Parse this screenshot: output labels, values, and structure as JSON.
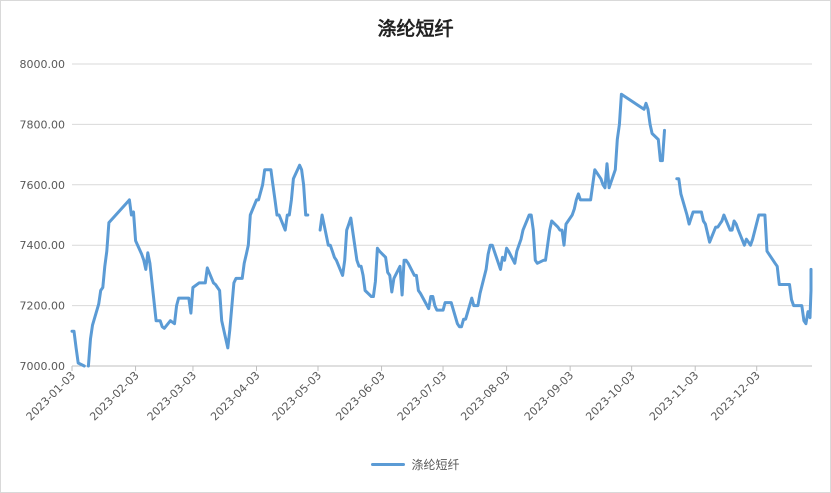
{
  "chart_data": {
    "type": "line",
    "title": "涤纶短纤",
    "xlabel": "",
    "ylabel": "",
    "ylim": [
      7000,
      8000
    ],
    "yticks": [
      "8000.00",
      "7800.00",
      "7600.00",
      "7400.00",
      "7200.00",
      "7000.00"
    ],
    "xticks": [
      "2023-01-03",
      "2023-02-03",
      "2023-03-03",
      "2023-04-03",
      "2023-05-03",
      "2023-06-03",
      "2023-07-03",
      "2023-08-03",
      "2023-09-03",
      "2023-10-03",
      "2023-11-03",
      "2023-12-03"
    ],
    "x_range": [
      "2023-01-03",
      "2023-12-29"
    ],
    "grid": true,
    "legend_position": "bottom",
    "color": "#5b9bd5",
    "series": [
      {
        "name": "涤纶短纤",
        "points": [
          [
            "2023-01-03",
            7115
          ],
          [
            "2023-01-04",
            7115
          ],
          [
            "2023-01-05",
            7060
          ],
          [
            "2023-01-06",
            7010
          ],
          [
            "2023-01-09",
            7000
          ],
          [
            null,
            null
          ],
          [
            "2023-01-11",
            7000
          ],
          [
            "2023-01-12",
            7090
          ],
          [
            "2023-01-13",
            7135
          ],
          [
            "2023-01-16",
            7205
          ],
          [
            "2023-01-17",
            7250
          ],
          [
            "2023-01-18",
            7260
          ],
          [
            "2023-01-19",
            7330
          ],
          [
            "2023-01-20",
            7380
          ],
          [
            "2023-01-21",
            7475
          ],
          [
            "2023-01-31",
            7550
          ],
          [
            "2023-02-01",
            7500
          ],
          [
            "2023-02-02",
            7510
          ],
          [
            "2023-02-03",
            7415
          ],
          [
            "2023-02-06",
            7370
          ],
          [
            "2023-02-07",
            7350
          ],
          [
            "2023-02-08",
            7320
          ],
          [
            "2023-02-09",
            7375
          ],
          [
            "2023-02-10",
            7340
          ],
          [
            "2023-02-13",
            7150
          ],
          [
            "2023-02-14",
            7150
          ],
          [
            "2023-02-15",
            7150
          ],
          [
            "2023-02-16",
            7130
          ],
          [
            "2023-02-17",
            7125
          ],
          [
            "2023-02-20",
            7150
          ],
          [
            "2023-02-21",
            7145
          ],
          [
            "2023-02-22",
            7140
          ],
          [
            "2023-02-23",
            7200
          ],
          [
            "2023-02-24",
            7225
          ],
          [
            "2023-02-27",
            7225
          ],
          [
            "2023-02-28",
            7225
          ],
          [
            "2023-03-01",
            7225
          ],
          [
            "2023-03-02",
            7175
          ],
          [
            "2023-03-03",
            7260
          ],
          [
            "2023-03-06",
            7275
          ],
          [
            "2023-03-07",
            7275
          ],
          [
            "2023-03-08",
            7275
          ],
          [
            "2023-03-09",
            7275
          ],
          [
            "2023-03-10",
            7325
          ],
          [
            "2023-03-13",
            7275
          ],
          [
            "2023-03-14",
            7270
          ],
          [
            "2023-03-15",
            7260
          ],
          [
            "2023-03-16",
            7250
          ],
          [
            "2023-03-17",
            7150
          ],
          [
            "2023-03-20",
            7060
          ],
          [
            "2023-03-21",
            7120
          ],
          [
            "2023-03-22",
            7200
          ],
          [
            "2023-03-23",
            7275
          ],
          [
            "2023-03-24",
            7290
          ],
          [
            "2023-03-27",
            7290
          ],
          [
            "2023-03-28",
            7340
          ],
          [
            "2023-03-29",
            7370
          ],
          [
            "2023-03-30",
            7400
          ],
          [
            "2023-03-31",
            7500
          ],
          [
            "2023-04-03",
            7550
          ],
          [
            "2023-04-04",
            7550
          ],
          [
            "2023-04-06",
            7600
          ],
          [
            "2023-04-07",
            7650
          ],
          [
            "2023-04-10",
            7650
          ],
          [
            "2023-04-11",
            7600
          ],
          [
            "2023-04-12",
            7550
          ],
          [
            "2023-04-13",
            7500
          ],
          [
            "2023-04-14",
            7500
          ],
          [
            "2023-04-17",
            7450
          ],
          [
            "2023-04-18",
            7500
          ],
          [
            "2023-04-19",
            7500
          ],
          [
            "2023-04-20",
            7550
          ],
          [
            "2023-04-21",
            7620
          ],
          [
            "2023-04-24",
            7665
          ],
          [
            "2023-04-25",
            7650
          ],
          [
            "2023-04-26",
            7600
          ],
          [
            "2023-04-27",
            7500
          ],
          [
            "2023-04-28",
            7500
          ],
          [
            null,
            null
          ],
          [
            "2023-05-04",
            7450
          ],
          [
            "2023-05-05",
            7500
          ],
          [
            "2023-05-08",
            7400
          ],
          [
            "2023-05-09",
            7400
          ],
          [
            "2023-05-10",
            7380
          ],
          [
            "2023-05-11",
            7360
          ],
          [
            "2023-05-12",
            7350
          ],
          [
            "2023-05-15",
            7300
          ],
          [
            "2023-05-16",
            7350
          ],
          [
            "2023-05-17",
            7450
          ],
          [
            "2023-05-18",
            7470
          ],
          [
            "2023-05-19",
            7490
          ],
          [
            "2023-05-22",
            7350
          ],
          [
            "2023-05-23",
            7330
          ],
          [
            "2023-05-24",
            7330
          ],
          [
            "2023-05-25",
            7300
          ],
          [
            "2023-05-26",
            7250
          ],
          [
            "2023-05-29",
            7230
          ],
          [
            "2023-05-30",
            7230
          ],
          [
            "2023-05-31",
            7280
          ],
          [
            "2023-06-01",
            7390
          ],
          [
            "2023-06-02",
            7380
          ],
          [
            "2023-06-05",
            7360
          ],
          [
            "2023-06-06",
            7310
          ],
          [
            "2023-06-07",
            7300
          ],
          [
            "2023-06-08",
            7245
          ],
          [
            "2023-06-09",
            7290
          ],
          [
            "2023-06-12",
            7330
          ],
          [
            "2023-06-13",
            7235
          ],
          [
            "2023-06-14",
            7350
          ],
          [
            "2023-06-15",
            7350
          ],
          [
            "2023-06-16",
            7340
          ],
          [
            "2023-06-19",
            7300
          ],
          [
            "2023-06-20",
            7300
          ],
          [
            "2023-06-21",
            7250
          ],
          [
            "2023-06-22",
            7240
          ],
          [
            "2023-06-26",
            7190
          ],
          [
            "2023-06-27",
            7230
          ],
          [
            "2023-06-28",
            7230
          ],
          [
            "2023-06-29",
            7200
          ],
          [
            "2023-06-30",
            7185
          ],
          [
            "2023-07-03",
            7185
          ],
          [
            "2023-07-04",
            7210
          ],
          [
            "2023-07-05",
            7210
          ],
          [
            "2023-07-06",
            7210
          ],
          [
            "2023-07-07",
            7210
          ],
          [
            "2023-07-10",
            7140
          ],
          [
            "2023-07-11",
            7130
          ],
          [
            "2023-07-12",
            7130
          ],
          [
            "2023-07-13",
            7155
          ],
          [
            "2023-07-14",
            7155
          ],
          [
            "2023-07-17",
            7225
          ],
          [
            "2023-07-18",
            7200
          ],
          [
            "2023-07-19",
            7200
          ],
          [
            "2023-07-20",
            7200
          ],
          [
            "2023-07-21",
            7240
          ],
          [
            "2023-07-24",
            7320
          ],
          [
            "2023-07-25",
            7370
          ],
          [
            "2023-07-26",
            7400
          ],
          [
            "2023-07-27",
            7400
          ],
          [
            "2023-07-28",
            7380
          ],
          [
            "2023-07-31",
            7320
          ],
          [
            "2023-08-01",
            7360
          ],
          [
            "2023-08-02",
            7350
          ],
          [
            "2023-08-03",
            7390
          ],
          [
            "2023-08-04",
            7380
          ],
          [
            "2023-08-07",
            7340
          ],
          [
            "2023-08-08",
            7380
          ],
          [
            "2023-08-09",
            7400
          ],
          [
            "2023-08-10",
            7420
          ],
          [
            "2023-08-11",
            7450
          ],
          [
            "2023-08-14",
            7500
          ],
          [
            "2023-08-15",
            7500
          ],
          [
            "2023-08-16",
            7450
          ],
          [
            "2023-08-17",
            7350
          ],
          [
            "2023-08-18",
            7340
          ],
          [
            "2023-08-21",
            7350
          ],
          [
            "2023-08-22",
            7350
          ],
          [
            "2023-08-23",
            7400
          ],
          [
            "2023-08-24",
            7450
          ],
          [
            "2023-08-25",
            7480
          ],
          [
            "2023-08-28",
            7460
          ],
          [
            "2023-08-29",
            7450
          ],
          [
            "2023-08-30",
            7450
          ],
          [
            "2023-08-31",
            7400
          ],
          [
            "2023-09-01",
            7470
          ],
          [
            "2023-09-04",
            7500
          ],
          [
            "2023-09-05",
            7520
          ],
          [
            "2023-09-06",
            7550
          ],
          [
            "2023-09-07",
            7570
          ],
          [
            "2023-09-08",
            7550
          ],
          [
            "2023-09-11",
            7550
          ],
          [
            "2023-09-12",
            7550
          ],
          [
            "2023-09-13",
            7550
          ],
          [
            "2023-09-14",
            7600
          ],
          [
            "2023-09-15",
            7650
          ],
          [
            "2023-09-18",
            7620
          ],
          [
            "2023-09-19",
            7600
          ],
          [
            "2023-09-20",
            7590
          ],
          [
            "2023-09-21",
            7670
          ],
          [
            "2023-09-22",
            7590
          ],
          [
            "2023-09-25",
            7650
          ],
          [
            "2023-09-26",
            7750
          ],
          [
            "2023-09-27",
            7800
          ],
          [
            "2023-09-28",
            7900
          ],
          [
            "2023-10-09",
            7850
          ],
          [
            "2023-10-10",
            7870
          ],
          [
            "2023-10-11",
            7850
          ],
          [
            "2023-10-12",
            7800
          ],
          [
            "2023-10-13",
            7770
          ],
          [
            "2023-10-16",
            7750
          ],
          [
            "2023-10-17",
            7680
          ],
          [
            "2023-10-18",
            7680
          ],
          [
            "2023-10-19",
            7780
          ],
          [
            null,
            null
          ],
          [
            "2023-10-25",
            7620
          ],
          [
            "2023-10-26",
            7620
          ],
          [
            "2023-10-27",
            7570
          ],
          [
            "2023-10-30",
            7500
          ],
          [
            "2023-10-31",
            7470
          ],
          [
            "2023-11-01",
            7490
          ],
          [
            "2023-11-02",
            7510
          ],
          [
            "2023-11-03",
            7510
          ],
          [
            "2023-11-06",
            7510
          ],
          [
            "2023-11-07",
            7480
          ],
          [
            "2023-11-08",
            7470
          ],
          [
            "2023-11-09",
            7440
          ],
          [
            "2023-11-10",
            7410
          ],
          [
            "2023-11-13",
            7460
          ],
          [
            "2023-11-14",
            7460
          ],
          [
            "2023-11-15",
            7470
          ],
          [
            "2023-11-16",
            7480
          ],
          [
            "2023-11-17",
            7500
          ],
          [
            "2023-11-20",
            7450
          ],
          [
            "2023-11-21",
            7450
          ],
          [
            "2023-11-22",
            7480
          ],
          [
            "2023-11-23",
            7470
          ],
          [
            "2023-11-24",
            7450
          ],
          [
            "2023-11-27",
            7400
          ],
          [
            "2023-11-28",
            7420
          ],
          [
            "2023-11-29",
            7410
          ],
          [
            "2023-11-30",
            7400
          ],
          [
            "2023-12-01",
            7420
          ],
          [
            "2023-12-04",
            7500
          ],
          [
            "2023-12-05",
            7500
          ],
          [
            "2023-12-06",
            7500
          ],
          [
            "2023-12-07",
            7500
          ],
          [
            "2023-12-08",
            7380
          ],
          [
            "2023-12-11",
            7350
          ],
          [
            "2023-12-12",
            7340
          ],
          [
            "2023-12-13",
            7330
          ],
          [
            "2023-12-14",
            7270
          ],
          [
            "2023-12-15",
            7270
          ],
          [
            "2023-12-18",
            7270
          ],
          [
            "2023-12-19",
            7270
          ],
          [
            "2023-12-20",
            7220
          ],
          [
            "2023-12-21",
            7200
          ],
          [
            "2023-12-22",
            7200
          ],
          [
            "2023-12-25",
            7200
          ],
          [
            "2023-12-26",
            7150
          ],
          [
            "2023-12-27",
            7140
          ],
          [
            "2023-12-28",
            7180
          ],
          [
            "2023-12-29",
            7160
          ],
          [
            "2024-01-01",
            7250
          ],
          [
            "2024-01-02",
            7300
          ],
          [
            "2024-01-03",
            7300
          ],
          [
            "2024-01-04",
            7300
          ],
          [
            "2024-01-05",
            7320
          ],
          [
            "2024-01-06",
            7320
          ]
        ]
      }
    ]
  }
}
